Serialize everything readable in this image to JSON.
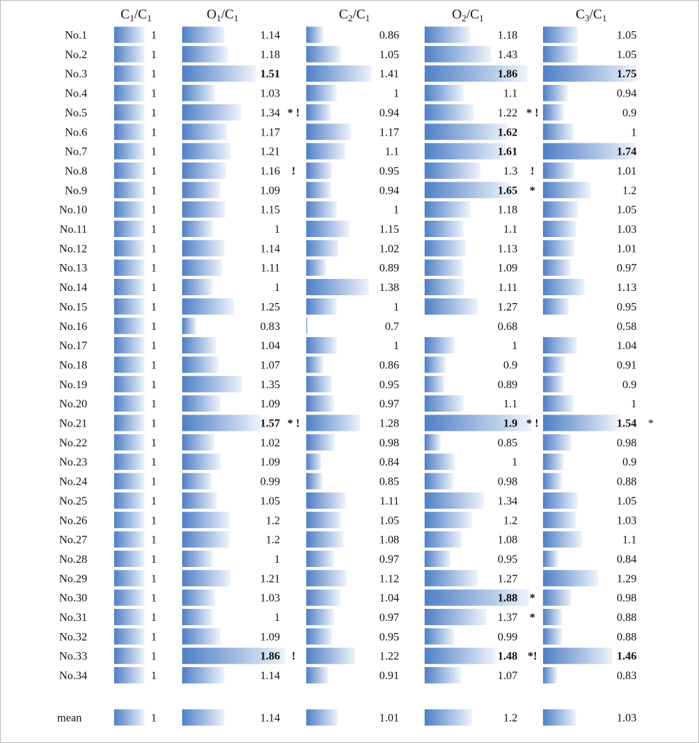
{
  "chart_data": {
    "type": "bar",
    "columns": [
      {
        "num": "C",
        "num_sub": "1",
        "den": "C",
        "den_sub": "1"
      },
      {
        "num": "O",
        "num_sub": "1",
        "den": "C",
        "den_sub": "1"
      },
      {
        "num": "C",
        "num_sub": "2",
        "den": "C",
        "den_sub": "1"
      },
      {
        "num": "O",
        "num_sub": "2",
        "den": "C",
        "den_sub": "1"
      },
      {
        "num": "C",
        "num_sub": "3",
        "den": "C",
        "den_sub": "1"
      }
    ],
    "categories": [
      "No.1",
      "No.2",
      "No.3",
      "No.4",
      "No.5",
      "No.6",
      "No.7",
      "No.8",
      "No.9",
      "No.10",
      "No.11",
      "No.12",
      "No.13",
      "No.14",
      "No.15",
      "No.16",
      "No.17",
      "No.18",
      "No.19",
      "No.20",
      "No.21",
      "No.22",
      "No.23",
      "No.24",
      "No.25",
      "No.26",
      "No.27",
      "No.28",
      "No.29",
      "No.30",
      "No.31",
      "No.32",
      "No.33",
      "No.34"
    ],
    "series": [
      {
        "values": [
          1,
          1,
          1,
          1,
          1,
          1,
          1,
          1,
          1,
          1,
          1,
          1,
          1,
          1,
          1,
          1,
          1,
          1,
          1,
          1,
          1,
          1,
          1,
          1,
          1,
          1,
          1,
          1,
          1,
          1,
          1,
          1,
          1,
          1
        ],
        "labels": [
          "1",
          "1",
          "1",
          "1",
          "1",
          "1",
          "1",
          "1",
          "1",
          "1",
          "1",
          "1",
          "1",
          "1",
          "1",
          "1",
          "1",
          "1",
          "1",
          "1",
          "1",
          "1",
          "1",
          "1",
          "1",
          "1",
          "1",
          "1",
          "1",
          "1",
          "1",
          "1",
          "1",
          "1"
        ],
        "bold": [],
        "marks": {}
      },
      {
        "values": [
          1.14,
          1.18,
          1.51,
          1.03,
          1.34,
          1.17,
          1.21,
          1.16,
          1.09,
          1.15,
          1,
          1.14,
          1.11,
          1,
          1.25,
          0.83,
          1.04,
          1.07,
          1.35,
          1.09,
          1.57,
          1.02,
          1.09,
          0.99,
          1.05,
          1.2,
          1.2,
          1,
          1.21,
          1.03,
          1,
          1.09,
          1.86,
          1.14
        ],
        "labels": [
          "1.14",
          "1.18",
          "1.51",
          "1.03",
          "1.34",
          "1.17",
          "1.21",
          "1.16",
          "1.09",
          "1.15",
          "1",
          "1.14",
          "1.11",
          "1",
          "1.25",
          "0.83",
          "1.04",
          "1.07",
          "1.35",
          "1.09",
          "1.57",
          "1.02",
          "1.09",
          "0.99",
          "1.05",
          "1.2",
          "1.2",
          "1",
          "1.21",
          "1.03",
          "1",
          "1.09",
          "1.86",
          "1.14"
        ],
        "bold": [
          2,
          20,
          32
        ],
        "marks": {
          "4": "* !",
          "7": "!",
          "20": "* !",
          "32": "!"
        }
      },
      {
        "values": [
          0.86,
          1.05,
          1.41,
          1,
          0.94,
          1.17,
          1.1,
          0.95,
          0.94,
          1,
          1.15,
          1.02,
          0.89,
          1.38,
          1,
          0.7,
          1,
          0.86,
          0.95,
          0.97,
          1.28,
          0.98,
          0.84,
          0.85,
          1.11,
          1.05,
          1.08,
          0.97,
          1.12,
          1.04,
          0.97,
          0.95,
          1.22,
          0.91
        ],
        "labels": [
          "0.86",
          "1.05",
          "1.41",
          "1",
          "0.94",
          "1.17",
          "1.1",
          "0.95",
          "0.94",
          "1",
          "1.15",
          "1.02",
          "0.89",
          "1.38",
          "1",
          "0.7",
          "1",
          "0.86",
          "0.95",
          "0.97",
          "1.28",
          "0.98",
          "0.84",
          "0.85",
          "1.11",
          "1.05",
          "1.08",
          "0.97",
          "1.12",
          "1.04",
          "0.97",
          "0.95",
          "1.22",
          "0.91"
        ],
        "bold": [],
        "marks": {}
      },
      {
        "values": [
          1.18,
          1.43,
          1.86,
          1.1,
          1.22,
          1.62,
          1.61,
          1.3,
          1.65,
          1.18,
          1.1,
          1.13,
          1.09,
          1.11,
          1.27,
          0.68,
          1,
          0.9,
          0.89,
          1.1,
          1.9,
          0.85,
          1,
          0.98,
          1.34,
          1.2,
          1.08,
          0.95,
          1.27,
          1.88,
          1.37,
          0.99,
          1.48,
          1.07
        ],
        "labels": [
          "1.18",
          "1.43",
          "1.86",
          "1.1",
          "1.22",
          "1.62",
          "1.61",
          "1.3",
          "1.65",
          "1.18",
          "1.1",
          "1.13",
          "1.09",
          "1.11",
          "1.27",
          "0.68",
          "1",
          "0.9",
          "0.89",
          "1.1",
          "1.9",
          "0.85",
          "1",
          "0.98",
          "1.34",
          "1.2",
          "1.08",
          "0.95",
          "1.27",
          "1.88",
          "1.37",
          "0.99",
          "1.48",
          "1.07"
        ],
        "bold": [
          2,
          5,
          6,
          8,
          20,
          29,
          32
        ],
        "marks": {
          "4": "* !",
          "7": "!",
          "8": "*",
          "20": "* !",
          "29": "*",
          "30": "*",
          "32": "*!"
        }
      },
      {
        "values": [
          1.05,
          1.05,
          1.75,
          0.94,
          0.9,
          1,
          1.74,
          1.01,
          1.2,
          1.05,
          1.03,
          1.01,
          0.97,
          1.13,
          0.95,
          0.58,
          1.04,
          0.91,
          0.9,
          1,
          1.54,
          0.98,
          0.9,
          0.88,
          1.05,
          1.03,
          1.1,
          0.84,
          1.29,
          0.98,
          0.88,
          0.88,
          1.46,
          0.83
        ],
        "labels": [
          "1.05",
          "1.05",
          "1.75",
          "0.94",
          "0.9",
          "1",
          "1.74",
          "1.01",
          "1.2",
          "1.05",
          "1.03",
          "1.01",
          "0.97",
          "1.13",
          "0.95",
          "0.58",
          "1.04",
          "0.91",
          "0.9",
          "1",
          "1.54",
          "0.98",
          "0.9",
          "0.88",
          "1.05",
          "1.03",
          "1.1",
          "0.84",
          "1.29",
          "0.98",
          "0.88",
          "0.88",
          "1.46",
          "0.83"
        ],
        "bold": [
          2,
          6,
          20,
          32
        ],
        "marks": {
          "20": "*"
        }
      }
    ],
    "mean": {
      "label": "mean",
      "values": [
        1,
        1.14,
        1.01,
        1.2,
        1.03
      ],
      "labels": [
        "1",
        "1.14",
        "1.01",
        "1.2",
        "1.03"
      ]
    },
    "bar_range": {
      "min": 0.7,
      "max": 1.9
    },
    "colors": {
      "bar_dark": "#4e7fc6",
      "bar_light": "#eef3fb",
      "text": "#111111",
      "frame": "#b8b8b8"
    }
  }
}
